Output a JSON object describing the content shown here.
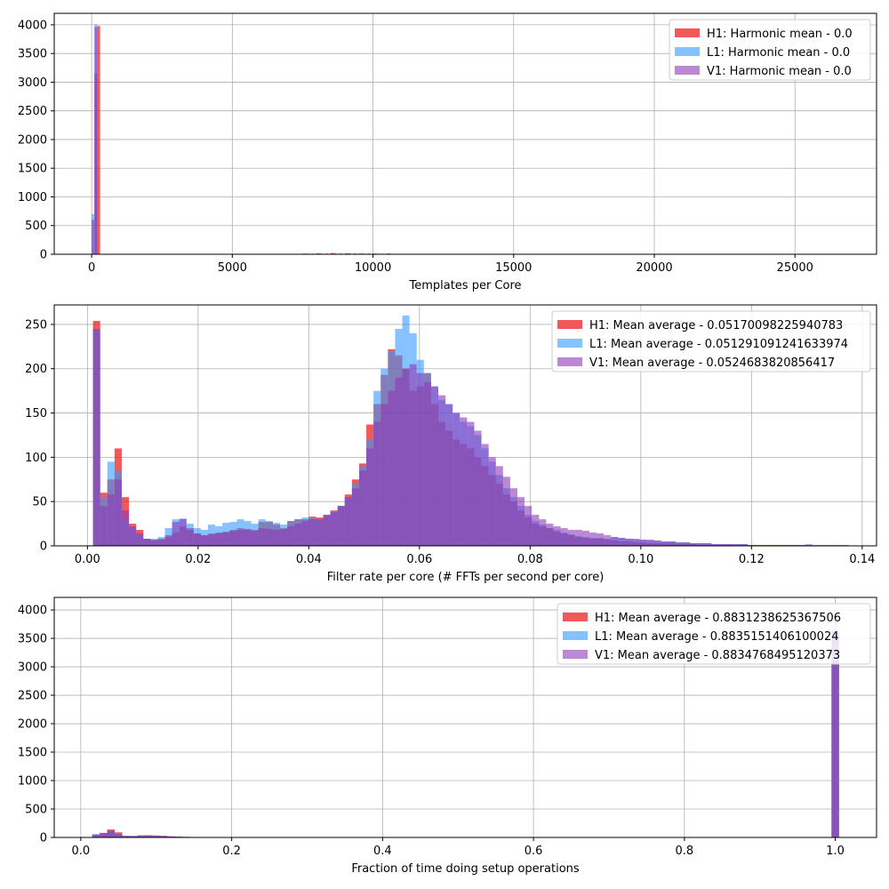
{
  "colors": {
    "H1": "#ee1111",
    "L1": "#3399ff",
    "V1": "#8f37b8"
  },
  "chart_data": [
    {
      "type": "bar",
      "xlabel": "Templates per Core",
      "ylabel": "",
      "xlim": [
        -1330,
        27900
      ],
      "ylim": [
        0,
        4200
      ],
      "xticks": [
        0,
        5000,
        10000,
        15000,
        20000,
        25000
      ],
      "xtick_labels": [
        "0",
        "5000",
        "10000",
        "15000",
        "20000",
        "25000"
      ],
      "yticks": [
        0,
        500,
        1000,
        1500,
        2000,
        2500,
        3000,
        3500,
        4000
      ],
      "ytick_labels": [
        "0",
        "500",
        "1000",
        "1500",
        "2000",
        "2500",
        "3000",
        "3500",
        "4000"
      ],
      "grid": true,
      "legend_position": "top-right",
      "bin_width": 100,
      "series": [
        {
          "name": "H1: Harmonic mean  - 0.0",
          "color_key": "H1",
          "alpha": 0.7,
          "bins": [
            [
              100,
              3150
            ],
            [
              200,
              3980
            ],
            [
              6300,
              4
            ],
            [
              6700,
              6
            ],
            [
              7000,
              8
            ],
            [
              7500,
              12
            ],
            [
              8000,
              18
            ],
            [
              8500,
              22
            ],
            [
              9000,
              15
            ],
            [
              9500,
              12
            ],
            [
              10000,
              14
            ],
            [
              10500,
              16
            ],
            [
              11000,
              8
            ],
            [
              12200,
              6
            ]
          ]
        },
        {
          "name": "L1: Harmonic mean  - 0.0",
          "color_key": "L1",
          "alpha": 0.6,
          "bins": [
            [
              0,
              700
            ],
            [
              100,
              4010
            ],
            [
              6500,
              4
            ],
            [
              7200,
              8
            ],
            [
              7800,
              12
            ],
            [
              8300,
              15
            ],
            [
              8800,
              18
            ],
            [
              9300,
              20
            ],
            [
              9800,
              15
            ],
            [
              10300,
              10
            ],
            [
              10800,
              8
            ],
            [
              11300,
              5
            ]
          ]
        },
        {
          "name": "V1: Harmonic mean  - 0.0",
          "color_key": "V1",
          "alpha": 0.6,
          "bins": [
            [
              0,
              600
            ],
            [
              100,
              3960
            ],
            [
              6600,
              5
            ],
            [
              7100,
              8
            ],
            [
              7600,
              12
            ],
            [
              8100,
              16
            ],
            [
              8600,
              20
            ],
            [
              9100,
              18
            ],
            [
              9600,
              14
            ],
            [
              10100,
              12
            ],
            [
              10600,
              10
            ],
            [
              11100,
              8
            ],
            [
              11600,
              5
            ]
          ]
        }
      ]
    },
    {
      "type": "bar",
      "xlabel": "Filter rate per core (# FFTs per second per core)",
      "ylabel": "",
      "xlim": [
        -0.006,
        0.1426
      ],
      "ylim": [
        0,
        272
      ],
      "xticks": [
        0.0,
        0.02,
        0.04,
        0.06,
        0.08,
        0.1,
        0.12,
        0.14
      ],
      "xtick_labels": [
        "0.00",
        "0.02",
        "0.04",
        "0.06",
        "0.08",
        "0.10",
        "0.12",
        "0.14"
      ],
      "yticks": [
        0,
        50,
        100,
        150,
        200,
        250
      ],
      "ytick_labels": [
        "0",
        "50",
        "100",
        "150",
        "200",
        "250"
      ],
      "grid": true,
      "legend_position": "top-right",
      "bin_width": 0.0013,
      "series": [
        {
          "name": "H1: Mean average - 0.05170098225940783",
          "color_key": "H1",
          "alpha": 0.7,
          "x": [
            0.001,
            0.0023,
            0.0036,
            0.0049,
            0.0062,
            0.0075,
            0.0088,
            0.0101,
            0.0114,
            0.0127,
            0.014,
            0.0153,
            0.0166,
            0.0179,
            0.0192,
            0.0205,
            0.0218,
            0.0231,
            0.0244,
            0.0257,
            0.027,
            0.0283,
            0.0296,
            0.0309,
            0.0322,
            0.0335,
            0.0348,
            0.0361,
            0.0374,
            0.0387,
            0.04,
            0.0413,
            0.0426,
            0.0439,
            0.0452,
            0.0465,
            0.0478,
            0.0491,
            0.0504,
            0.0517,
            0.053,
            0.0543,
            0.0556,
            0.0569,
            0.0582,
            0.0595,
            0.0608,
            0.0621,
            0.0634,
            0.0647,
            0.066,
            0.0673,
            0.0686,
            0.0699,
            0.0712,
            0.0725,
            0.0738,
            0.0751,
            0.0764,
            0.0777,
            0.079,
            0.0803,
            0.0816,
            0.0829,
            0.0842,
            0.0855,
            0.0868,
            0.0881,
            0.0894,
            0.0907,
            0.092,
            0.0933,
            0.0946,
            0.0959,
            0.0972,
            0.0985,
            0.0998,
            0.1011,
            0.1024,
            0.1037,
            0.105,
            0.1063,
            0.1076,
            0.1089,
            0.1102,
            0.1115,
            0.1128,
            0.1141,
            0.1154
          ],
          "values": [
            254,
            60,
            75,
            110,
            55,
            25,
            18,
            8,
            7,
            8,
            10,
            15,
            22,
            18,
            14,
            12,
            14,
            15,
            16,
            18,
            20,
            18,
            17,
            27,
            27,
            24,
            20,
            28,
            30,
            30,
            33,
            32,
            35,
            40,
            45,
            58,
            75,
            93,
            137,
            160,
            193,
            222,
            215,
            200,
            175,
            180,
            195,
            160,
            140,
            130,
            120,
            115,
            110,
            100,
            90,
            80,
            70,
            58,
            50,
            40,
            32,
            25,
            22,
            20,
            16,
            14,
            12,
            10,
            9,
            8,
            8,
            7,
            6,
            5,
            5,
            4,
            4,
            3,
            3,
            3,
            3,
            2,
            2,
            2,
            1,
            1,
            1,
            1,
            1
          ]
        },
        {
          "name": "L1: Mean average - 0.051291091241633974",
          "color_key": "L1",
          "alpha": 0.6,
          "x": [
            0.001,
            0.0023,
            0.0036,
            0.0049,
            0.0062,
            0.0075,
            0.0088,
            0.0101,
            0.0114,
            0.0127,
            0.014,
            0.0153,
            0.0166,
            0.0179,
            0.0192,
            0.0205,
            0.0218,
            0.0231,
            0.0244,
            0.0257,
            0.027,
            0.0283,
            0.0296,
            0.0309,
            0.0322,
            0.0335,
            0.0348,
            0.0361,
            0.0374,
            0.0387,
            0.04,
            0.0413,
            0.0426,
            0.0439,
            0.0452,
            0.0465,
            0.0478,
            0.0491,
            0.0504,
            0.0517,
            0.053,
            0.0543,
            0.0556,
            0.0569,
            0.0582,
            0.0595,
            0.0608,
            0.0621,
            0.0634,
            0.0647,
            0.066,
            0.0673,
            0.0686,
            0.0699,
            0.0712,
            0.0725,
            0.0738,
            0.0751,
            0.0764,
            0.0777,
            0.079,
            0.0803,
            0.0816,
            0.0829,
            0.0842,
            0.0855,
            0.0868,
            0.0881,
            0.0894,
            0.0907,
            0.092,
            0.0933,
            0.0946,
            0.0959,
            0.0972,
            0.0985,
            0.0998,
            0.1011,
            0.1024,
            0.1037,
            0.105,
            0.1063,
            0.1076,
            0.1089,
            0.1102,
            0.1115,
            0.1128,
            0.1141,
            0.1154,
            0.1167,
            0.118,
            0.1193,
            0.1206,
            0.1219,
            0.1232,
            0.1245,
            0.1258,
            0.1271,
            0.1284,
            0.1297
          ],
          "values": [
            243,
            55,
            95,
            85,
            30,
            20,
            12,
            8,
            8,
            10,
            20,
            30,
            31,
            25,
            20,
            18,
            24,
            22,
            26,
            27,
            30,
            28,
            25,
            30,
            28,
            26,
            24,
            28,
            30,
            32,
            32,
            30,
            34,
            38,
            45,
            55,
            70,
            90,
            120,
            175,
            200,
            220,
            245,
            260,
            240,
            210,
            195,
            180,
            165,
            160,
            150,
            140,
            135,
            125,
            110,
            95,
            80,
            65,
            55,
            45,
            35,
            28,
            24,
            20,
            18,
            15,
            13,
            11,
            10,
            9,
            9,
            8,
            10,
            9,
            8,
            7,
            7,
            6,
            6,
            5,
            5,
            4,
            4,
            3,
            3,
            3,
            2,
            2,
            2,
            2,
            2,
            1,
            1,
            1,
            1,
            1,
            1,
            1,
            1,
            2
          ]
        },
        {
          "name": "V1: Mean average - 0.0524683820856417",
          "color_key": "V1",
          "alpha": 0.6,
          "x": [
            0.001,
            0.0023,
            0.0036,
            0.0049,
            0.0062,
            0.0075,
            0.0088,
            0.0101,
            0.0114,
            0.0127,
            0.014,
            0.0153,
            0.0166,
            0.0179,
            0.0192,
            0.0205,
            0.0218,
            0.0231,
            0.0244,
            0.0257,
            0.027,
            0.0283,
            0.0296,
            0.0309,
            0.0322,
            0.0335,
            0.0348,
            0.0361,
            0.0374,
            0.0387,
            0.04,
            0.0413,
            0.0426,
            0.0439,
            0.0452,
            0.0465,
            0.0478,
            0.0491,
            0.0504,
            0.0517,
            0.053,
            0.0543,
            0.0556,
            0.0569,
            0.0582,
            0.0595,
            0.0608,
            0.0621,
            0.0634,
            0.0647,
            0.066,
            0.0673,
            0.0686,
            0.0699,
            0.0712,
            0.0725,
            0.0738,
            0.0751,
            0.0764,
            0.0777,
            0.079,
            0.0803,
            0.0816,
            0.0829,
            0.0842,
            0.0855,
            0.0868,
            0.0881,
            0.0894,
            0.0907,
            0.092,
            0.0933,
            0.0946,
            0.0959,
            0.0972,
            0.0985,
            0.0998,
            0.1011,
            0.1024,
            0.1037,
            0.105,
            0.1063,
            0.1076,
            0.1089,
            0.1102,
            0.1115,
            0.1128,
            0.1141,
            0.1154,
            0.1167,
            0.118,
            0.1193,
            0.1206,
            0.1219,
            0.1232,
            0.1245,
            0.1258,
            0.1271,
            0.1284,
            0.1297,
            0.131,
            0.1323,
            0.1336,
            0.1349,
            0.1362
          ],
          "values": [
            245,
            45,
            58,
            75,
            40,
            22,
            14,
            8,
            6,
            7,
            12,
            27,
            30,
            20,
            14,
            12,
            13,
            14,
            15,
            17,
            18,
            19,
            18,
            20,
            19,
            18,
            19,
            22,
            25,
            28,
            30,
            30,
            35,
            38,
            45,
            55,
            65,
            85,
            110,
            140,
            160,
            175,
            190,
            200,
            205,
            195,
            185,
            180,
            170,
            160,
            150,
            145,
            140,
            130,
            115,
            100,
            90,
            78,
            65,
            55,
            45,
            35,
            30,
            25,
            22,
            20,
            18,
            18,
            17,
            15,
            14,
            12,
            10,
            9,
            8,
            8,
            7,
            7,
            6,
            5,
            5,
            4,
            4,
            3,
            3,
            3,
            2,
            2,
            2,
            2,
            2,
            1,
            1,
            1,
            1,
            1,
            1,
            1,
            1,
            1,
            1,
            1,
            1,
            1,
            1
          ]
        }
      ]
    },
    {
      "type": "bar",
      "xlabel": "Fraction of time doing setup operations",
      "ylabel": "",
      "xlim": [
        -0.0352,
        1.0547
      ],
      "ylim": [
        0,
        4220
      ],
      "xticks": [
        0.0,
        0.2,
        0.4,
        0.6,
        0.8,
        1.0
      ],
      "xtick_labels": [
        "0.0",
        "0.2",
        "0.4",
        "0.6",
        "0.8",
        "1.0"
      ],
      "yticks": [
        0,
        500,
        1000,
        1500,
        2000,
        2500,
        3000,
        3500,
        4000
      ],
      "ytick_labels": [
        "0",
        "500",
        "1000",
        "1500",
        "2000",
        "2500",
        "3000",
        "3500",
        "4000"
      ],
      "grid": true,
      "legend_position": "top-right",
      "bin_width": 0.01,
      "series": [
        {
          "name": "H1: Mean average - 0.8831238625367506",
          "color_key": "H1",
          "alpha": 0.7,
          "x": [
            0.015,
            0.025,
            0.035,
            0.045,
            0.055,
            0.065,
            0.075,
            0.085,
            0.095,
            0.105,
            0.115,
            0.125,
            0.135,
            0.145,
            0.155,
            0.165,
            0.175,
            0.185,
            0.225,
            0.995
          ],
          "values": [
            40,
            80,
            140,
            90,
            30,
            20,
            30,
            40,
            35,
            30,
            20,
            15,
            10,
            8,
            6,
            5,
            4,
            3,
            2,
            3600
          ]
        },
        {
          "name": "L1: Mean average - 0.8835151406100024",
          "color_key": "L1",
          "alpha": 0.6,
          "x": [
            0.015,
            0.025,
            0.035,
            0.045,
            0.055,
            0.065,
            0.075,
            0.085,
            0.095,
            0.105,
            0.115,
            0.125,
            0.135,
            0.145,
            0.155,
            0.165,
            0.175,
            0.225,
            0.995
          ],
          "values": [
            60,
            70,
            110,
            70,
            25,
            30,
            40,
            35,
            30,
            25,
            18,
            12,
            10,
            8,
            6,
            5,
            4,
            2,
            3640
          ]
        },
        {
          "name": "V1: Mean average - 0.8834768495120373",
          "color_key": "V1",
          "alpha": 0.6,
          "x": [
            0.015,
            0.025,
            0.035,
            0.045,
            0.055,
            0.065,
            0.075,
            0.085,
            0.095,
            0.105,
            0.115,
            0.125,
            0.135,
            0.145,
            0.155,
            0.165,
            0.175,
            0.185,
            0.995
          ],
          "values": [
            50,
            75,
            120,
            60,
            20,
            25,
            35,
            30,
            28,
            22,
            16,
            12,
            9,
            7,
            5,
            4,
            3,
            2,
            3620
          ]
        }
      ]
    }
  ]
}
